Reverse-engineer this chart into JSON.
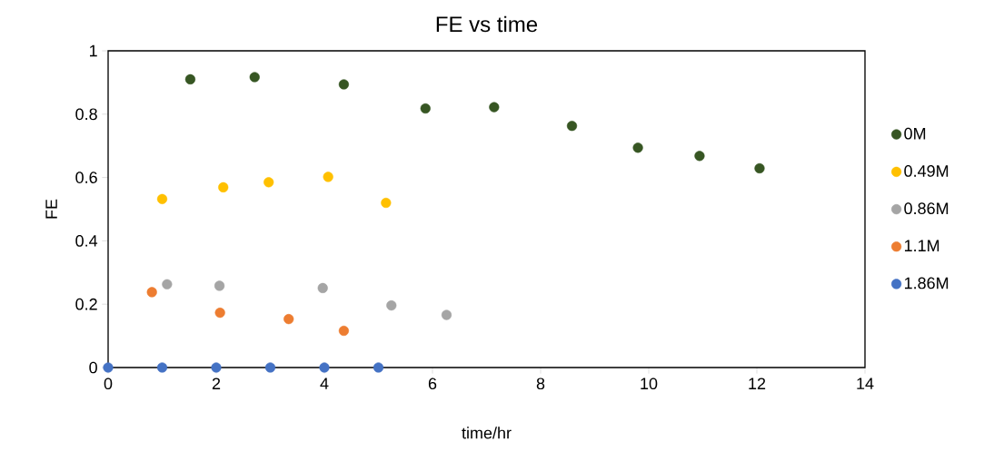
{
  "chart_data": {
    "type": "scatter",
    "title": "FE vs time",
    "xlabel": "time/hr",
    "ylabel": "FE",
    "xlim": [
      0,
      14
    ],
    "ylim": [
      0,
      1
    ],
    "xticks": [
      0,
      2,
      4,
      6,
      8,
      10,
      12,
      14
    ],
    "yticks": [
      0,
      0.2,
      0.4,
      0.6,
      0.8,
      1
    ],
    "legend": "right",
    "marker": "circle",
    "series": [
      {
        "name": "0M",
        "color": "#375623",
        "x": [
          1.52,
          2.71,
          4.36,
          5.87,
          7.14,
          8.58,
          9.8,
          10.94,
          12.05
        ],
        "values": [
          0.91,
          0.917,
          0.894,
          0.818,
          0.822,
          0.763,
          0.694,
          0.668,
          0.629
        ]
      },
      {
        "name": "0.49M",
        "color": "#ffc000",
        "x": [
          1.0,
          2.13,
          2.97,
          4.07,
          5.14
        ],
        "values": [
          0.532,
          0.569,
          0.585,
          0.602,
          0.52
        ]
      },
      {
        "name": "0.86M",
        "color": "#a5a5a5",
        "x": [
          1.09,
          2.06,
          3.97,
          5.24,
          6.26
        ],
        "values": [
          0.263,
          0.258,
          0.251,
          0.196,
          0.166
        ]
      },
      {
        "name": "1.1M",
        "color": "#ed7d31",
        "x": [
          0.81,
          2.07,
          3.34,
          4.36
        ],
        "values": [
          0.238,
          0.173,
          0.153,
          0.116
        ]
      },
      {
        "name": "1.86M",
        "color": "#4472c4",
        "x": [
          0,
          1,
          2,
          3,
          4,
          5
        ],
        "values": [
          0,
          0,
          0,
          0,
          0,
          0
        ]
      }
    ]
  }
}
